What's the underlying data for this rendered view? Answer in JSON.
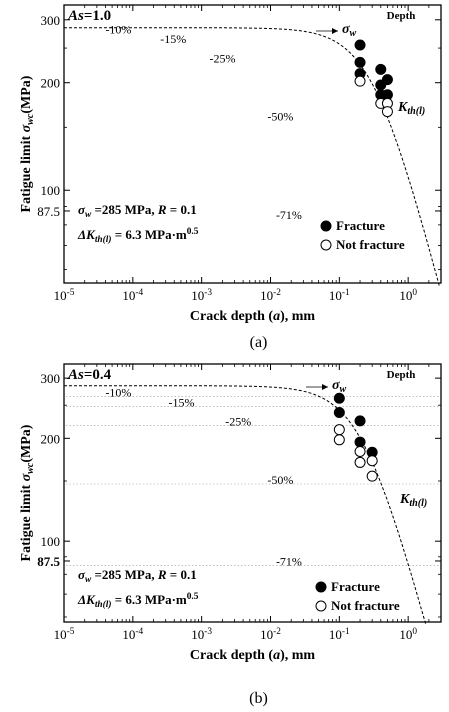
{
  "chart_data": [
    {
      "type": "scatter",
      "panel_label": "(a)",
      "as_label": "As=1.0",
      "depth_label": "Depth",
      "xlabel": "Crack depth (a), mm",
      "ylabel": "Fatigue limit σwc(MPa)",
      "xscale": "log",
      "yscale": "log",
      "xlim": [
        1e-05,
        3
      ],
      "ylim": [
        55,
        330
      ],
      "x_ticks": [
        "10-5",
        "10-4",
        "10-3",
        "10-2",
        "10-1",
        "100"
      ],
      "y_ticks": [
        {
          "value": 300,
          "label": "300"
        },
        {
          "value": 200,
          "label": "200"
        },
        {
          "value": 100,
          "label": "100"
        },
        {
          "value": 87.5,
          "label": "87.5"
        }
      ],
      "depth_reductions": [
        {
          "label": "-10%",
          "x": 4e-05,
          "y": 275
        },
        {
          "label": "-15%",
          "x": 0.00025,
          "y": 258
        },
        {
          "label": "-25%",
          "x": 0.0013,
          "y": 228
        },
        {
          "label": "-50%",
          "x": 0.009,
          "y": 157
        },
        {
          "label": "-71%",
          "x": 0.012,
          "y": 83
        }
      ],
      "sigma_w_curve": {
        "sigma_w": 285,
        "delta_k_th": 6.3
      },
      "series": [
        {
          "name": "Fracture",
          "marker": "filled-circle",
          "points": [
            [
              0.2,
              255
            ],
            [
              0.2,
              228
            ],
            [
              0.2,
              212
            ],
            [
              0.4,
              218
            ],
            [
              0.4,
              197
            ],
            [
              0.5,
              204
            ],
            [
              0.4,
              185
            ],
            [
              0.5,
              185
            ]
          ]
        },
        {
          "name": "Not fracture",
          "marker": "open-circle",
          "points": [
            [
              0.2,
              202
            ],
            [
              0.4,
              175
            ],
            [
              0.5,
              175
            ],
            [
              0.5,
              166
            ]
          ]
        }
      ],
      "annotations": {
        "sigma_w_label": "σw",
        "kth_label": "Kth(l)",
        "param_line1": "σw =285 MPa, R = 0.1",
        "param_line2": "ΔKth(l) = 6.3 MPa·m0.5"
      },
      "legend_position": "bottom-right",
      "grid": false
    },
    {
      "type": "scatter",
      "panel_label": "(b)",
      "as_label": "As=0.4",
      "depth_label": "Depth",
      "xlabel": "Crack depth (a), mm",
      "ylabel": "Fatigue limit σwc(MPa)",
      "xscale": "log",
      "yscale": "log",
      "xlim": [
        1e-05,
        3
      ],
      "ylim": [
        58,
        330
      ],
      "x_ticks": [
        "10-5",
        "10-4",
        "10-3",
        "10-2",
        "10-1",
        "100"
      ],
      "y_ticks": [
        {
          "value": 300,
          "label": "300"
        },
        {
          "value": 200,
          "label": "200"
        },
        {
          "value": 100,
          "label": "100"
        },
        {
          "value": 87.5,
          "label": "87.5"
        }
      ],
      "depth_reductions": [
        {
          "label": "-10%",
          "x": 4e-05,
          "y": 265
        },
        {
          "label": "-15%",
          "x": 0.00033,
          "y": 248
        },
        {
          "label": "-25%",
          "x": 0.0022,
          "y": 218
        },
        {
          "label": "-50%",
          "x": 0.009,
          "y": 147
        },
        {
          "label": "-71%",
          "x": 0.012,
          "y": 85
        }
      ],
      "sigma_w_curve": {
        "sigma_w": 285,
        "delta_k_th": 6.3
      },
      "series": [
        {
          "name": "Fracture",
          "marker": "filled-circle",
          "points": [
            [
              0.1,
              262
            ],
            [
              0.1,
              238
            ],
            [
              0.2,
              225
            ],
            [
              0.2,
              195
            ],
            [
              0.3,
              182
            ]
          ]
        },
        {
          "name": "Not fracture",
          "marker": "open-circle",
          "points": [
            [
              0.1,
              212
            ],
            [
              0.1,
              198
            ],
            [
              0.2,
              183
            ],
            [
              0.2,
              170
            ],
            [
              0.3,
              172
            ],
            [
              0.3,
              155
            ]
          ]
        }
      ],
      "annotations": {
        "sigma_w_label": "σw",
        "kth_label": "Kth(l)",
        "param_line1": "σw =285 MPa, R = 0.1",
        "param_line2": "ΔKth(l) = 6.3 MPa·m0.5"
      },
      "legend_position": "bottom-right",
      "grid": false
    }
  ]
}
